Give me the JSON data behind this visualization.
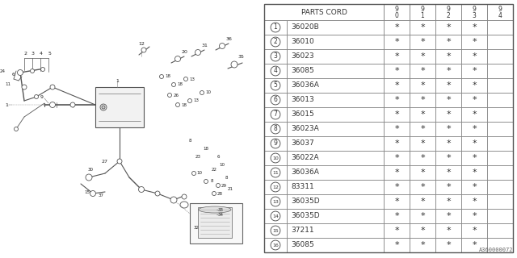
{
  "bg_color": "#ffffff",
  "watermark": "A360000072",
  "table": {
    "header_col1": "PARTS CORD",
    "header_years": [
      "9\n0",
      "9\n1",
      "9\n2",
      "9\n3",
      "9\n4"
    ],
    "rows": [
      {
        "num": 1,
        "part": "36020B",
        "stars": [
          1,
          1,
          1,
          1,
          0
        ]
      },
      {
        "num": 2,
        "part": "36010",
        "stars": [
          1,
          1,
          1,
          1,
          0
        ]
      },
      {
        "num": 3,
        "part": "36023",
        "stars": [
          1,
          1,
          1,
          1,
          0
        ]
      },
      {
        "num": 4,
        "part": "36085",
        "stars": [
          1,
          1,
          1,
          1,
          0
        ]
      },
      {
        "num": 5,
        "part": "36036A",
        "stars": [
          1,
          1,
          1,
          1,
          0
        ]
      },
      {
        "num": 6,
        "part": "36013",
        "stars": [
          1,
          1,
          1,
          1,
          0
        ]
      },
      {
        "num": 7,
        "part": "36015",
        "stars": [
          1,
          1,
          1,
          1,
          0
        ]
      },
      {
        "num": 8,
        "part": "36023A",
        "stars": [
          1,
          1,
          1,
          1,
          0
        ]
      },
      {
        "num": 9,
        "part": "36037",
        "stars": [
          1,
          1,
          1,
          1,
          0
        ]
      },
      {
        "num": 10,
        "part": "36022A",
        "stars": [
          1,
          1,
          1,
          1,
          0
        ]
      },
      {
        "num": 11,
        "part": "36036A",
        "stars": [
          1,
          1,
          1,
          1,
          0
        ]
      },
      {
        "num": 12,
        "part": "83311",
        "stars": [
          1,
          1,
          1,
          1,
          0
        ]
      },
      {
        "num": 13,
        "part": "36035D",
        "stars": [
          1,
          1,
          1,
          1,
          0
        ]
      },
      {
        "num": 14,
        "part": "36035D",
        "stars": [
          1,
          1,
          1,
          1,
          0
        ]
      },
      {
        "num": 15,
        "part": "37211",
        "stars": [
          1,
          1,
          1,
          1,
          0
        ]
      },
      {
        "num": 16,
        "part": "36085",
        "stars": [
          1,
          1,
          1,
          1,
          0
        ]
      }
    ]
  },
  "line_color": "#999999",
  "text_color": "#333333",
  "draw_color": "#555555"
}
